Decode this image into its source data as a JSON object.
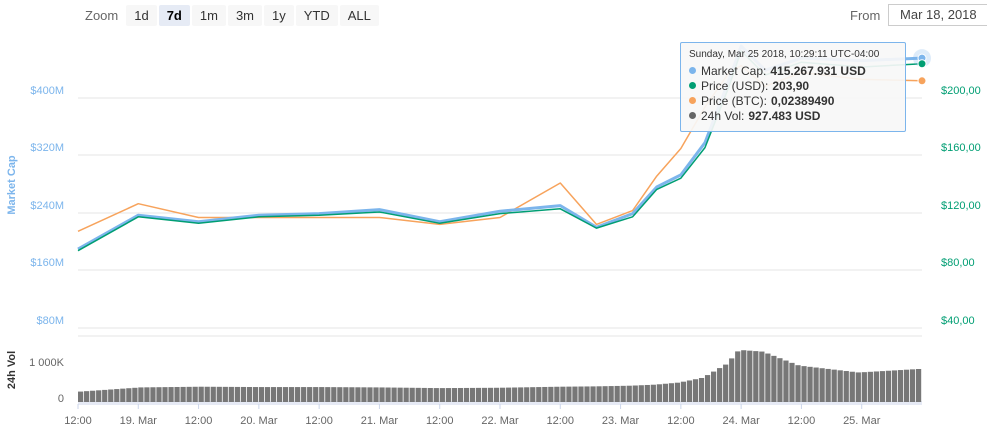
{
  "zoom": {
    "label": "Zoom",
    "buttons": [
      "1d",
      "7d",
      "1m",
      "3m",
      "1y",
      "YTD",
      "ALL"
    ],
    "active": "7d"
  },
  "range": {
    "from_label": "From",
    "from_value": "Mar 18, 2018"
  },
  "tooltip": {
    "date": "Sunday, Mar 25 2018, 10:29:11 UTC-04:00",
    "rows": [
      {
        "label": "Market Cap:",
        "value": "415.267.931 USD",
        "color": "#7cb5ec"
      },
      {
        "label": "Price (USD):",
        "value": "203,90",
        "color": "#009e73"
      },
      {
        "label": "Price (BTC):",
        "value": "0,02389490",
        "color": "#f7a35c"
      },
      {
        "label": "24h Vol:",
        "value": "927.483 USD",
        "color": "#666666"
      }
    ]
  },
  "chart_data": {
    "type": "line",
    "y_left_label": "Market Cap",
    "y_left_ticks": [
      "$400M",
      "$320M",
      "$240M",
      "$160M",
      "$80M"
    ],
    "y_right_ticks": [
      "$200,00",
      "$160,00",
      "$120,00",
      "$80,00",
      "$40,00"
    ],
    "volume_label": "24h Vol",
    "volume_ticks": [
      "1 000K",
      "0"
    ],
    "x_ticks": [
      "12:00",
      "19. Mar",
      "12:00",
      "20. Mar",
      "12:00",
      "21. Mar",
      "12:00",
      "22. Mar",
      "12:00",
      "23. Mar",
      "12:00",
      "24. Mar",
      "12:00",
      "25. Mar"
    ],
    "x": [
      0,
      0.5,
      1,
      1.5,
      2,
      2.5,
      3,
      3.5,
      4,
      4.3,
      4.6,
      4.8,
      5,
      5.2,
      5.4,
      5.5,
      5.7,
      6,
      6.5,
      7
    ],
    "series": [
      {
        "name": "Market Cap",
        "color": "#7cb5ec",
        "values": [
          178,
          220,
          212,
          220,
          222,
          227,
          212,
          225,
          232,
          205,
          222,
          255,
          270,
          310,
          388,
          430,
          400,
          415,
          412,
          415
        ]
      },
      {
        "name": "Price (USD)",
        "color": "#009e73",
        "values": [
          88,
          109,
          105,
          109,
          110,
          112,
          105,
          111,
          114,
          102,
          109,
          126,
          133,
          152,
          190,
          212,
          197,
          205,
          202,
          204
        ]
      },
      {
        "name": "Price (BTC)",
        "color": "#f7a35c",
        "values": [
          0.013,
          0.015,
          0.014,
          0.014,
          0.014,
          0.014,
          0.0135,
          0.014,
          0.0165,
          0.0135,
          0.0145,
          0.017,
          0.019,
          0.022,
          0.0245,
          0.025,
          0.0235,
          0.0245,
          0.024,
          0.0239
        ]
      }
    ],
    "volume": [
      300,
      420,
      440,
      430,
      430,
      420,
      400,
      410,
      440,
      450,
      470,
      500,
      560,
      700,
      1100,
      1500,
      1450,
      1050,
      850,
      950
    ]
  }
}
